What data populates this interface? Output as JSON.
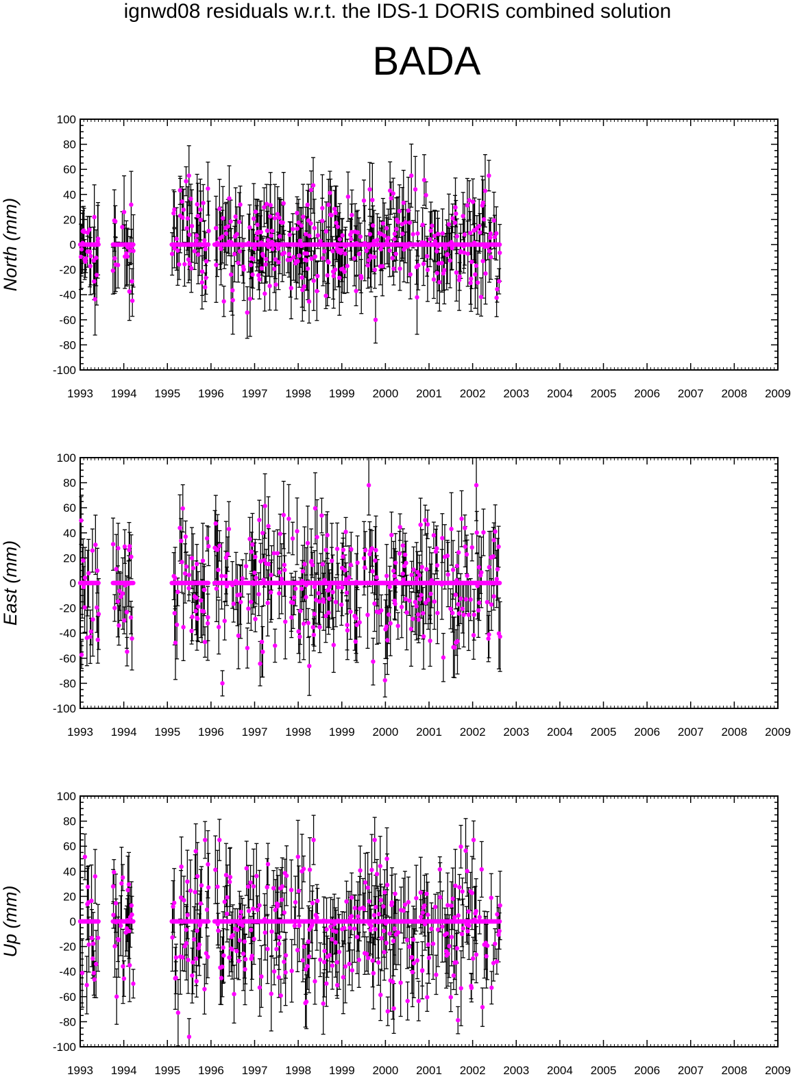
{
  "header": {
    "suptitle": "ignwd08 residuals w.r.t. the IDS-1 DORIS combined solution",
    "station": "BADA"
  },
  "colors": {
    "point": "#ff00ff",
    "errorbar": "#000000",
    "frame": "#000000"
  },
  "chart_data": [
    {
      "type": "scatter",
      "panel": "north",
      "title": "",
      "xlabel": "",
      "ylabel": "North (mm)",
      "xlim": [
        1993,
        2009
      ],
      "ylim": [
        -100,
        100
      ],
      "xticks": [
        "1993",
        "1994",
        "1995",
        "1996",
        "1997",
        "1998",
        "1999",
        "2000",
        "2001",
        "2002",
        "2003",
        "2004",
        "2005",
        "2006",
        "2007",
        "2008",
        "2009"
      ],
      "yticks": [
        "-100",
        "-80",
        "-60",
        "-40",
        "-20",
        "0",
        "20",
        "40",
        "60",
        "80",
        "100"
      ],
      "grid": false,
      "series": [
        {
          "marker": "circle",
          "error_bars": true,
          "points": []
        }
      ],
      "data_periods": [
        [
          1993.0,
          1993.42
        ],
        [
          1993.75,
          1994.22
        ],
        [
          1995.1,
          1995.95
        ],
        [
          1996.08,
          2002.62
        ]
      ],
      "zero_line_points": true,
      "approx_value_range": [
        -60,
        55
      ],
      "approx_error_range": [
        10,
        30
      ]
    },
    {
      "type": "scatter",
      "panel": "east",
      "title": "",
      "xlabel": "",
      "ylabel": "East (mm)",
      "xlim": [
        1993,
        2009
      ],
      "ylim": [
        -100,
        100
      ],
      "xticks": [
        "1993",
        "1994",
        "1995",
        "1996",
        "1997",
        "1998",
        "1999",
        "2000",
        "2001",
        "2002",
        "2003",
        "2004",
        "2005",
        "2006",
        "2007",
        "2008",
        "2009"
      ],
      "yticks": [
        "-100",
        "-80",
        "-60",
        "-40",
        "-20",
        "0",
        "20",
        "40",
        "60",
        "80",
        "100"
      ],
      "grid": false,
      "series": [
        {
          "marker": "circle",
          "error_bars": true,
          "points": []
        }
      ],
      "data_periods": [
        [
          1993.0,
          1993.42
        ],
        [
          1993.75,
          1994.22
        ],
        [
          1995.1,
          1995.95
        ],
        [
          1996.08,
          2002.62
        ]
      ],
      "zero_line_points": true,
      "approx_value_range": [
        -80,
        78
      ],
      "approx_error_range": [
        10,
        30
      ]
    },
    {
      "type": "scatter",
      "panel": "up",
      "title": "",
      "xlabel": "",
      "ylabel": "Up (mm)",
      "xlim": [
        1993,
        2009
      ],
      "ylim": [
        -100,
        100
      ],
      "xticks": [
        "1993",
        "1994",
        "1995",
        "1996",
        "1997",
        "1998",
        "1999",
        "2000",
        "2001",
        "2002",
        "2003",
        "2004",
        "2005",
        "2006",
        "2007",
        "2008",
        "2009"
      ],
      "yticks": [
        "-100",
        "-80",
        "-60",
        "-40",
        "-20",
        "0",
        "20",
        "40",
        "60",
        "80",
        "100"
      ],
      "grid": false,
      "series": [
        {
          "marker": "circle",
          "error_bars": true,
          "points": []
        }
      ],
      "data_periods": [
        [
          1993.0,
          1993.42
        ],
        [
          1993.75,
          1994.22
        ],
        [
          1995.1,
          1995.95
        ],
        [
          1996.08,
          2002.62
        ]
      ],
      "zero_line_points": true,
      "approx_value_range": [
        -92,
        65
      ],
      "approx_error_range": [
        10,
        30
      ]
    }
  ]
}
